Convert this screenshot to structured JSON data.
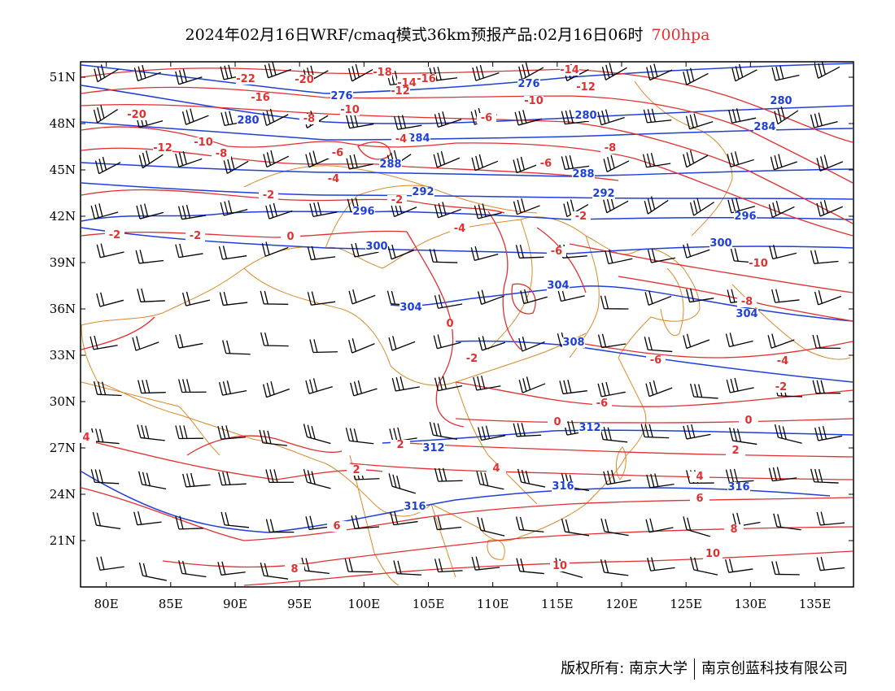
{
  "header": {
    "title": "2024年02月16日WRF/cmaq模式36km预报产品:02月16日06时",
    "level": "700hpa"
  },
  "map": {
    "lon_ticks": [
      "80E",
      "85E",
      "90E",
      "95E",
      "100E",
      "105E",
      "110E",
      "115E",
      "120E",
      "125E",
      "130E",
      "135E"
    ],
    "lat_ticks": [
      "51N",
      "48N",
      "45N",
      "42N",
      "39N",
      "36N",
      "33N",
      "30N",
      "27N",
      "24N",
      "21N"
    ],
    "lon_values": [
      80,
      85,
      90,
      95,
      100,
      105,
      110,
      115,
      120,
      125,
      130,
      135
    ],
    "lat_values": [
      51,
      48,
      45,
      42,
      39,
      36,
      33,
      30,
      27,
      24,
      21
    ],
    "lon_range": [
      78,
      138
    ],
    "lat_range": [
      18,
      52
    ],
    "colors": {
      "temperature": "#e03030",
      "height": "#1e3fd8",
      "borders": "#d98a2a",
      "wind": "#000000"
    },
    "height_labels": [
      "276",
      "276",
      "280",
      "280",
      "284",
      "284",
      "288",
      "288",
      "292",
      "292",
      "296",
      "296",
      "300",
      "300",
      "304",
      "304",
      "304",
      "308",
      "312",
      "312",
      "316",
      "316",
      "316",
      "280"
    ],
    "temperature_labels": [
      "-18",
      "-16",
      "-14",
      "-12",
      "-22",
      "-20",
      "-16",
      "-14",
      "-12",
      "-10",
      "-8",
      "-10",
      "-6",
      "-4",
      "-8",
      "-20",
      "-10",
      "-8",
      "-6",
      "-12",
      "-2",
      "-6",
      "-4",
      "-2",
      "0",
      "-4",
      "-6",
      "-2",
      "0",
      "-6",
      "-10",
      "-8",
      "-4",
      "-2",
      "-6",
      "-2",
      "0",
      "0",
      "2",
      "4",
      "6",
      "8",
      "10",
      "4",
      "2",
      "4",
      "6",
      "8",
      "10",
      "-2",
      "-2",
      "2"
    ]
  },
  "footer": {
    "left": "版权所有: 南京大学",
    "right": "南京创蓝科技有限公司"
  }
}
